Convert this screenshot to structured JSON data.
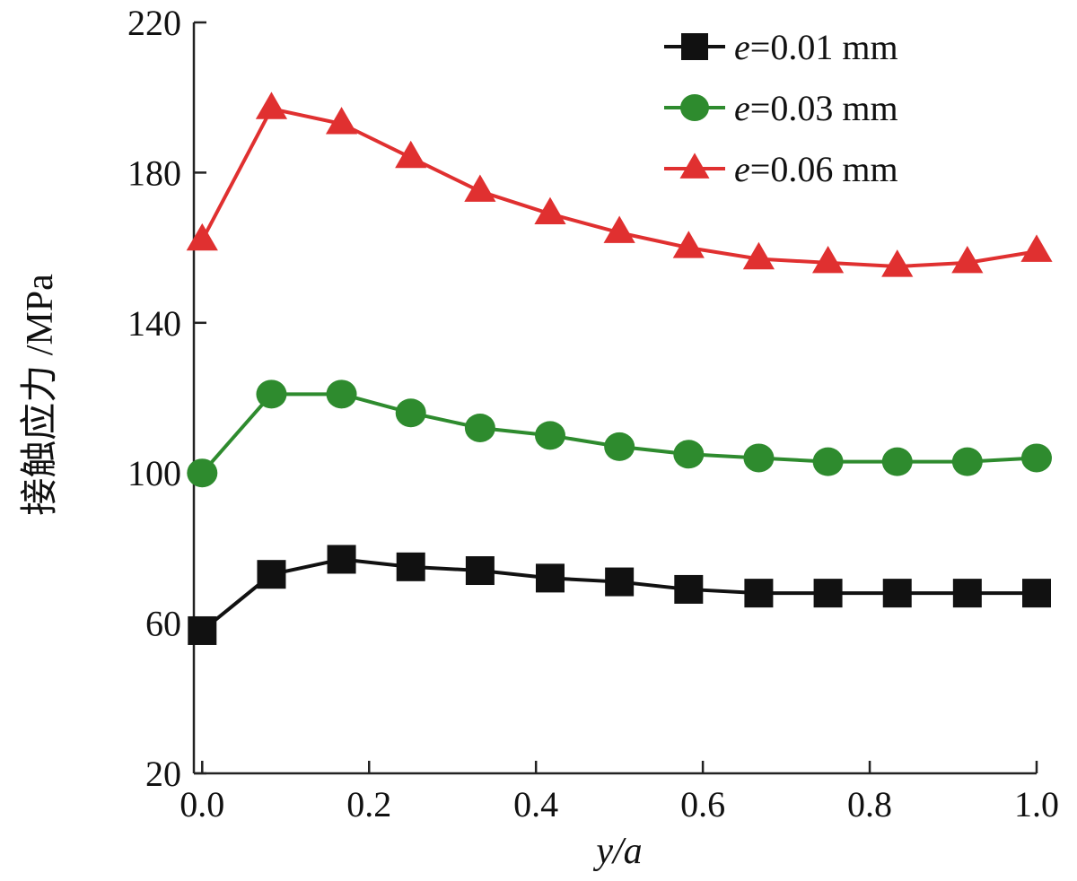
{
  "chart_data": {
    "type": "line",
    "title": "",
    "xlabel": "y/a",
    "ylabel": "接触应力 /MPa",
    "xlim": [
      -0.01,
      1.0
    ],
    "ylim": [
      20,
      220
    ],
    "xticks": [
      0.0,
      0.2,
      0.4,
      0.6,
      0.8,
      1.0
    ],
    "xtick_labels": [
      "0.0",
      "0.2",
      "0.4",
      "0.6",
      "0.8",
      "1.0"
    ],
    "yticks": [
      20,
      60,
      100,
      140,
      180,
      220
    ],
    "ytick_labels": [
      "20",
      "60",
      "100",
      "140",
      "180",
      "220"
    ],
    "legend_position": "top-right",
    "x": [
      0.0,
      0.083,
      0.167,
      0.25,
      0.333,
      0.417,
      0.5,
      0.583,
      0.667,
      0.75,
      0.833,
      0.917,
      1.0
    ],
    "series": [
      {
        "name": "e=0.01 mm",
        "legend_italic": "e",
        "legend_rest": "=0.01 mm",
        "color": "#111111",
        "marker": "square",
        "values": [
          58,
          73,
          77,
          75,
          74,
          72,
          71,
          69,
          68,
          68,
          68,
          68,
          68
        ]
      },
      {
        "name": "e=0.03 mm",
        "legend_italic": "e",
        "legend_rest": "=0.03 mm",
        "color": "#2e8b2e",
        "marker": "circle",
        "values": [
          100,
          121,
          121,
          116,
          112,
          110,
          107,
          105,
          104,
          103,
          103,
          103,
          104
        ]
      },
      {
        "name": "e=0.06 mm",
        "legend_italic": "e",
        "legend_rest": "=0.06 mm",
        "color": "#e03030",
        "marker": "triangle",
        "values": [
          162,
          197,
          193,
          184,
          175,
          169,
          164,
          160,
          157,
          156,
          155,
          156,
          159
        ]
      }
    ]
  }
}
